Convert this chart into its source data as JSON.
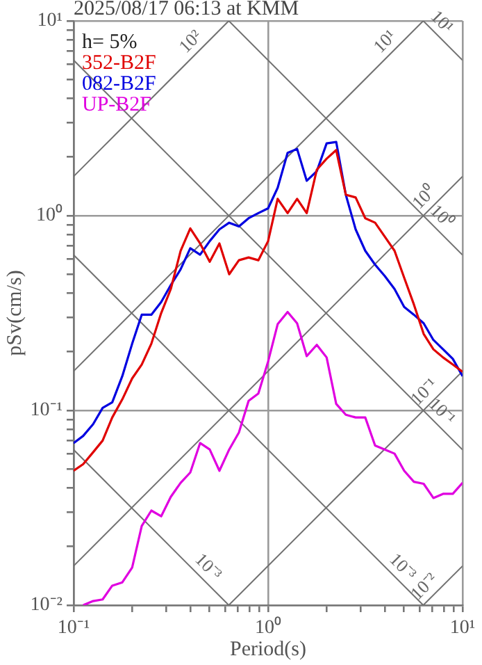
{
  "chart_data": {
    "type": "line",
    "title": "2025/08/17 06:13 at KMM",
    "xlabel": "Period(s)",
    "ylabel": "pSv(cm/s)",
    "legend_title": "h= 5%",
    "legend": "top left",
    "log": "xy",
    "grid": true,
    "marker": "none",
    "line_style": "solid",
    "xlim": [
      0.1,
      10
    ],
    "ylim": [
      0.01,
      10
    ],
    "xticks": [
      {
        "value": 0.1,
        "label": "10⁻¹"
      },
      {
        "value": 0.2,
        "label": null
      },
      {
        "value": 0.3,
        "label": null
      },
      {
        "value": 0.4,
        "label": null
      },
      {
        "value": 0.5,
        "label": null
      },
      {
        "value": 0.6,
        "label": null
      },
      {
        "value": 0.7,
        "label": null
      },
      {
        "value": 0.8,
        "label": null
      },
      {
        "value": 0.9,
        "label": null
      },
      {
        "value": 1,
        "label": "10⁰"
      },
      {
        "value": 2,
        "label": null
      },
      {
        "value": 3,
        "label": null
      },
      {
        "value": 4,
        "label": null
      },
      {
        "value": 5,
        "label": null
      },
      {
        "value": 6,
        "label": null
      },
      {
        "value": 7,
        "label": null
      },
      {
        "value": 8,
        "label": null
      },
      {
        "value": 9,
        "label": null
      },
      {
        "value": 10,
        "label": "10¹"
      }
    ],
    "yticks": [
      {
        "value": 0.01,
        "label": "10⁻²"
      },
      {
        "value": 0.02,
        "label": null
      },
      {
        "value": 0.03,
        "label": null
      },
      {
        "value": 0.04,
        "label": null
      },
      {
        "value": 0.05,
        "label": null
      },
      {
        "value": 0.06,
        "label": null
      },
      {
        "value": 0.07,
        "label": null
      },
      {
        "value": 0.08,
        "label": null
      },
      {
        "value": 0.09,
        "label": null
      },
      {
        "value": 0.1,
        "label": "10⁻¹"
      },
      {
        "value": 0.2,
        "label": null
      },
      {
        "value": 0.3,
        "label": null
      },
      {
        "value": 0.4,
        "label": null
      },
      {
        "value": 0.5,
        "label": null
      },
      {
        "value": 0.6,
        "label": null
      },
      {
        "value": 0.7,
        "label": null
      },
      {
        "value": 0.8,
        "label": null
      },
      {
        "value": 0.9,
        "label": null
      },
      {
        "value": 1,
        "label": "10⁰"
      },
      {
        "value": 2,
        "label": null
      },
      {
        "value": 3,
        "label": null
      },
      {
        "value": 4,
        "label": null
      },
      {
        "value": 5,
        "label": null
      },
      {
        "value": 6,
        "label": null
      },
      {
        "value": 7,
        "label": null
      },
      {
        "value": 8,
        "label": null
      },
      {
        "value": 9,
        "label": null
      },
      {
        "value": 10,
        "label": "10¹"
      }
    ],
    "x": [
      0.1,
      0.112,
      0.126,
      0.141,
      0.158,
      0.178,
      0.2,
      0.224,
      0.251,
      0.282,
      0.316,
      0.355,
      0.398,
      0.447,
      0.501,
      0.562,
      0.631,
      0.708,
      0.794,
      0.891,
      1,
      1.12,
      1.26,
      1.41,
      1.58,
      1.78,
      2,
      2.24,
      2.51,
      2.82,
      3.16,
      3.55,
      3.98,
      4.47,
      5.01,
      5.62,
      6.31,
      7.08,
      7.94,
      8.91,
      10
    ],
    "series": [
      {
        "name": "352-B2F",
        "color": "#e00000",
        "values": [
          0.049,
          0.053,
          0.061,
          0.07,
          0.092,
          0.114,
          0.146,
          0.172,
          0.22,
          0.316,
          0.42,
          0.66,
          0.86,
          0.72,
          0.58,
          0.72,
          0.5,
          0.59,
          0.61,
          0.59,
          0.74,
          1.22,
          1.03,
          1.22,
          1.03,
          1.72,
          1.96,
          2.17,
          1.28,
          1.24,
          0.97,
          0.92,
          0.78,
          0.66,
          0.48,
          0.35,
          0.247,
          0.206,
          0.187,
          0.172,
          0.158
        ]
      },
      {
        "name": "082-B2F",
        "color": "#0000e0",
        "values": [
          0.068,
          0.074,
          0.085,
          0.103,
          0.11,
          0.15,
          0.22,
          0.31,
          0.31,
          0.36,
          0.44,
          0.53,
          0.68,
          0.63,
          0.74,
          0.85,
          0.92,
          0.88,
          0.97,
          1.03,
          1.09,
          1.39,
          2.1,
          2.2,
          1.51,
          1.69,
          2.35,
          2.39,
          1.28,
          0.85,
          0.66,
          0.56,
          0.49,
          0.42,
          0.34,
          0.31,
          0.28,
          0.23,
          0.206,
          0.184,
          0.15
        ]
      },
      {
        "name": "UP-B2F",
        "color": "#e000e0",
        "values": [
          null,
          0.01,
          0.0105,
          0.0107,
          0.0126,
          0.0131,
          0.0156,
          0.0255,
          0.0306,
          0.0286,
          0.036,
          0.0425,
          0.048,
          0.068,
          0.063,
          0.049,
          0.063,
          0.077,
          0.112,
          0.122,
          0.178,
          0.277,
          0.32,
          0.28,
          0.19,
          0.217,
          0.187,
          0.108,
          0.095,
          0.092,
          0.092,
          0.066,
          0.063,
          0.06,
          0.049,
          0.043,
          0.042,
          0.0355,
          0.0373,
          0.0373,
          0.0425
        ]
      },
      {
        "name": "10²",
        "color": "#707070",
        "x": [
          0.1,
          0.628
        ],
        "values": [
          1.59,
          10
        ]
      },
      {
        "name": "10¹",
        "color": "#707070",
        "x": [
          0.1,
          6.28
        ],
        "values": [
          0.159,
          10
        ]
      },
      {
        "name": "10⁰",
        "color": "#707070",
        "x": [
          0.1,
          10
        ],
        "values": [
          0.0159,
          1.59
        ]
      },
      {
        "name": "10⁻¹",
        "color": "#707070",
        "x": [
          0.628,
          10
        ],
        "values": [
          0.01,
          0.159
        ]
      },
      {
        "name": "10⁻²",
        "color": "#707070",
        "x": [
          6.28,
          10
        ],
        "values": [
          0.01,
          0.0159
        ]
      },
      {
        "name": "10¹",
        "color": "#707070",
        "x": [
          6.28,
          10
        ],
        "values": [
          10,
          6.28
        ]
      },
      {
        "name": "10⁰",
        "color": "#707070",
        "x": [
          0.628,
          10
        ],
        "values": [
          10,
          0.628
        ]
      },
      {
        "name": "10⁻¹",
        "color": "#707070",
        "x": [
          0.1,
          10
        ],
        "values": [
          6.28,
          0.0628
        ]
      },
      {
        "name": "10⁻³",
        "color": "#707070",
        "x": [
          0.1,
          6.28
        ],
        "values": [
          0.628,
          0.01
        ]
      },
      {
        "name": "10⁻³",
        "color": "#707070",
        "x": [
          0.1,
          0.628
        ],
        "values": [
          0.0628,
          0.01
        ]
      }
    ]
  }
}
